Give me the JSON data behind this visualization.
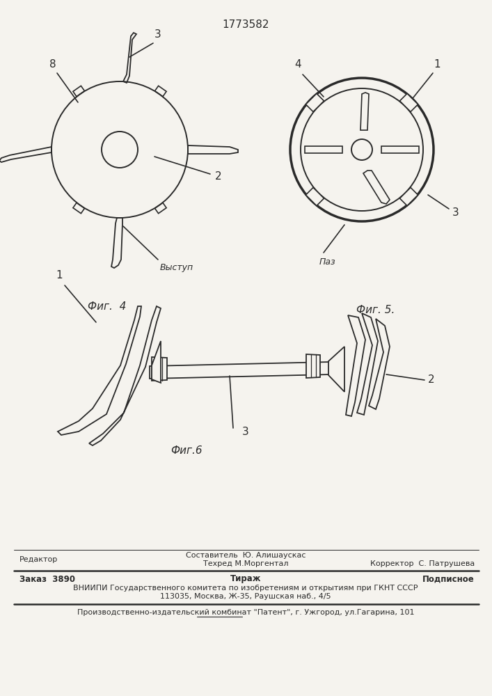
{
  "patent_number": "1773582",
  "bg_color": "#f5f3ee",
  "line_color": "#2a2a2a",
  "fig4_label": "Фиг.  4",
  "fig5_label": "Фиг. 5.",
  "fig6_label": "Фиг.6",
  "vyostup_label": "Выступ",
  "paz_label": "Паз",
  "footer_line1_left": "Редактор",
  "footer_line1_center1": "Составитель  Ю. Алишаускас",
  "footer_line1_center2": "Техред М.Моргентал",
  "footer_line1_right": "Корректор  С. Патрушева",
  "footer_line2_left": "Заказ  3890",
  "footer_line2_center": "Тираж",
  "footer_line2_right": "Подписное",
  "footer_line3": "ВНИИПИ Государственного комитета по изобретениям и открытиям при ГКНТ СССР",
  "footer_line4": "113035, Москва, Ж-35, Раушская наб., 4/5",
  "footer_line5": "Производственно-издательский комбинат \"Патент\", г. Ужгород, ул.Гагарина, 101"
}
